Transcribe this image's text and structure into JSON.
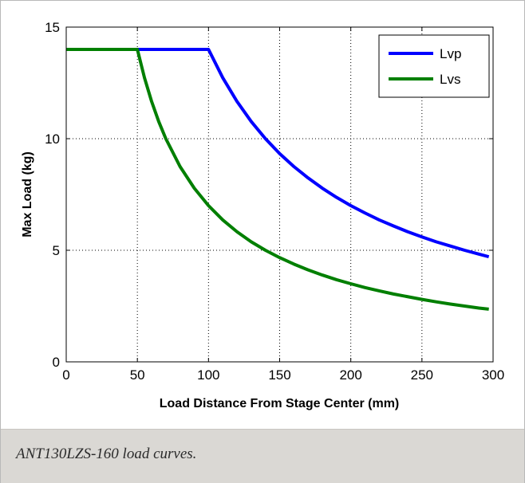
{
  "caption": "ANT130LZS-160 load curves.",
  "chart_data": {
    "type": "line",
    "title": "",
    "xlabel": "Load Distance From Stage Center (mm)",
    "ylabel": "Max Load (kg)",
    "xlim": [
      0,
      300
    ],
    "ylim": [
      0,
      15
    ],
    "xticks": [
      0,
      50,
      100,
      150,
      200,
      250,
      300
    ],
    "yticks": [
      0,
      5,
      10,
      15
    ],
    "grid": true,
    "legend": "top-right",
    "series": [
      {
        "name": "Lvp",
        "color": "#0000ff",
        "x": [
          0,
          100,
          110,
          120,
          130,
          140,
          150,
          160,
          170,
          180,
          190,
          200,
          210,
          220,
          230,
          240,
          250,
          260,
          270,
          280,
          290,
          297
        ],
        "y": [
          14,
          14,
          12.73,
          11.67,
          10.77,
          10,
          9.33,
          8.75,
          8.24,
          7.78,
          7.37,
          7,
          6.67,
          6.36,
          6.09,
          5.83,
          5.6,
          5.38,
          5.19,
          5,
          4.83,
          4.71
        ]
      },
      {
        "name": "Lvs",
        "color": "#007f00",
        "x": [
          0,
          50,
          55,
          60,
          65,
          70,
          80,
          90,
          100,
          110,
          120,
          130,
          140,
          150,
          160,
          170,
          180,
          190,
          200,
          210,
          220,
          230,
          240,
          250,
          260,
          270,
          280,
          290,
          297
        ],
        "y": [
          14,
          14,
          12.73,
          11.67,
          10.77,
          10,
          8.75,
          7.78,
          7,
          6.36,
          5.83,
          5.38,
          5,
          4.67,
          4.38,
          4.12,
          3.89,
          3.68,
          3.5,
          3.33,
          3.18,
          3.04,
          2.92,
          2.8,
          2.69,
          2.59,
          2.5,
          2.41,
          2.36
        ]
      }
    ]
  }
}
